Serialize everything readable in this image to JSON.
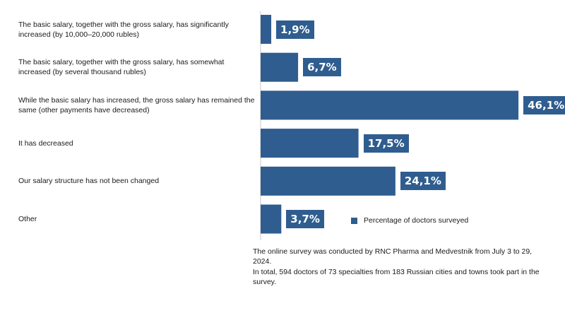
{
  "chart_data": {
    "type": "bar",
    "orientation": "horizontal",
    "categories": [
      "The basic salary, together with the gross salary, has significantly increased (by 10,000–20,000 rubles)",
      "The basic salary, together with the gross salary, has somewhat increased (by several thousand rubles)",
      "While the basic salary has increased, the gross salary has remained the same (other payments have decreased)",
      "It has decreased",
      "Our salary structure has not been changed",
      "Other"
    ],
    "series": [
      {
        "name": "Percentage of doctors surveyed",
        "values": [
          1.9,
          6.7,
          46.1,
          17.5,
          24.1,
          3.7
        ],
        "labels": [
          "1,9%",
          "6,7%",
          "46,1%",
          "17,5%",
          "24,1%",
          "3,7%"
        ],
        "color": "#2f5d8f"
      }
    ],
    "xlim": [
      0,
      50
    ],
    "grid": false,
    "legend_position": "right"
  },
  "notes": [
    "The online survey was conducted by RNC Pharma and Medvestnik from July 3 to 29, 2024.",
    "In total, 594 doctors of 73 specialties from 183 Russian cities and towns took part in the survey."
  ]
}
